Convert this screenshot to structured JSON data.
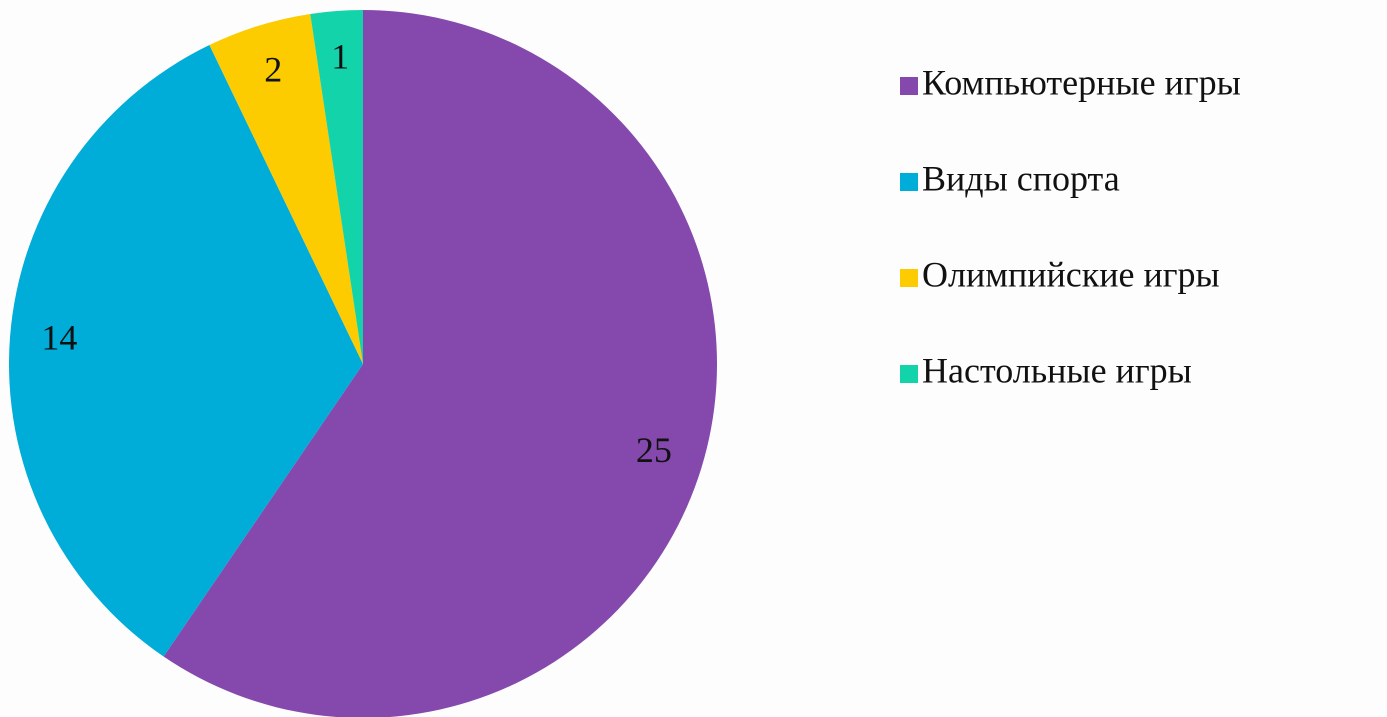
{
  "chart_data": {
    "type": "pie",
    "categories": [
      "Компьютерные игры",
      "Виды спорта",
      "Олимпийские игры",
      "Настольные игры"
    ],
    "values": [
      25,
      14,
      2,
      1
    ],
    "colors": [
      "#8549ad",
      "#00acd8",
      "#fccb00",
      "#13d3aa"
    ]
  }
}
